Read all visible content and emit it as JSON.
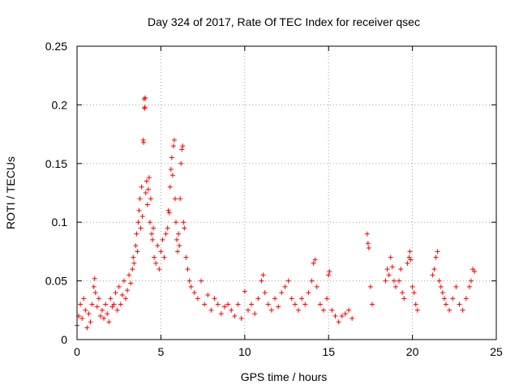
{
  "chart_data": {
    "type": "scatter",
    "title": "Day 324 of 2017, Rate Of TEC Index for receiver qsec",
    "xlabel": "GPS time / hours",
    "ylabel": "ROTI / TECUs",
    "xlim": [
      0,
      25
    ],
    "ylim": [
      0,
      0.25
    ],
    "xticks": [
      0,
      5,
      10,
      15,
      20,
      25
    ],
    "yticks": [
      0,
      0.05,
      0.1,
      0.15,
      0.2,
      0.25
    ],
    "xtick_labels": [
      "0",
      "5",
      "10",
      "15",
      "20",
      "25"
    ],
    "ytick_labels": [
      "0",
      "0.05",
      "0.1",
      "0.15",
      "0.2",
      "0.25"
    ],
    "grid": true,
    "marker": "plus",
    "color": "#ff0000",
    "series": [
      {
        "points": [
          [
            0.0,
            0.012
          ],
          [
            0.1,
            0.02
          ],
          [
            0.2,
            0.03
          ],
          [
            0.3,
            0.018
          ],
          [
            0.4,
            0.035
          ],
          [
            0.5,
            0.025
          ],
          [
            0.6,
            0.01
          ],
          [
            0.7,
            0.022
          ],
          [
            0.8,
            0.015
          ],
          [
            0.9,
            0.03
          ],
          [
            1.0,
            0.045
          ],
          [
            1.05,
            0.052
          ],
          [
            1.1,
            0.04
          ],
          [
            1.2,
            0.028
          ],
          [
            1.3,
            0.035
          ],
          [
            1.4,
            0.02
          ],
          [
            1.5,
            0.025
          ],
          [
            1.6,
            0.018
          ],
          [
            1.7,
            0.03
          ],
          [
            1.8,
            0.022
          ],
          [
            1.9,
            0.015
          ],
          [
            2.0,
            0.035
          ],
          [
            2.1,
            0.028
          ],
          [
            2.2,
            0.03
          ],
          [
            2.3,
            0.04
          ],
          [
            2.4,
            0.025
          ],
          [
            2.5,
            0.045
          ],
          [
            2.6,
            0.03
          ],
          [
            2.7,
            0.038
          ],
          [
            2.8,
            0.05
          ],
          [
            2.9,
            0.035
          ],
          [
            3.0,
            0.042
          ],
          [
            3.1,
            0.055
          ],
          [
            3.2,
            0.048
          ],
          [
            3.3,
            0.06
          ],
          [
            3.35,
            0.07
          ],
          [
            3.4,
            0.065
          ],
          [
            3.5,
            0.08
          ],
          [
            3.55,
            0.09
          ],
          [
            3.6,
            0.075
          ],
          [
            3.65,
            0.1
          ],
          [
            3.7,
            0.11
          ],
          [
            3.75,
            0.12
          ],
          [
            3.8,
            0.095
          ],
          [
            3.85,
            0.13
          ],
          [
            3.9,
            0.105
          ],
          [
            3.95,
            0.17
          ],
          [
            3.97,
            0.168
          ],
          [
            4.0,
            0.205
          ],
          [
            4.02,
            0.197
          ],
          [
            4.05,
            0.198
          ],
          [
            4.07,
            0.206
          ],
          [
            4.1,
            0.125
          ],
          [
            4.15,
            0.135
          ],
          [
            4.2,
            0.115
          ],
          [
            4.25,
            0.128
          ],
          [
            4.3,
            0.138
          ],
          [
            4.35,
            0.1
          ],
          [
            4.4,
            0.12
          ],
          [
            4.45,
            0.09
          ],
          [
            4.5,
            0.085
          ],
          [
            4.55,
            0.095
          ],
          [
            4.6,
            0.07
          ],
          [
            4.7,
            0.065
          ],
          [
            4.8,
            0.08
          ],
          [
            4.9,
            0.06
          ],
          [
            5.0,
            0.075
          ],
          [
            5.1,
            0.085
          ],
          [
            5.2,
            0.07
          ],
          [
            5.3,
            0.09
          ],
          [
            5.4,
            0.095
          ],
          [
            5.45,
            0.11
          ],
          [
            5.5,
            0.108
          ],
          [
            5.55,
            0.13
          ],
          [
            5.6,
            0.145
          ],
          [
            5.65,
            0.155
          ],
          [
            5.7,
            0.14
          ],
          [
            5.75,
            0.165
          ],
          [
            5.8,
            0.17
          ],
          [
            5.85,
            0.12
          ],
          [
            5.9,
            0.1
          ],
          [
            5.95,
            0.085
          ],
          [
            6.0,
            0.075
          ],
          [
            6.05,
            0.09
          ],
          [
            6.1,
            0.08
          ],
          [
            6.15,
            0.12
          ],
          [
            6.2,
            0.15
          ],
          [
            6.25,
            0.162
          ],
          [
            6.3,
            0.165
          ],
          [
            6.35,
            0.1
          ],
          [
            6.4,
            0.095
          ],
          [
            6.5,
            0.07
          ],
          [
            6.6,
            0.06
          ],
          [
            6.7,
            0.05
          ],
          [
            6.8,
            0.045
          ],
          [
            7.0,
            0.04
          ],
          [
            7.2,
            0.035
          ],
          [
            7.4,
            0.05
          ],
          [
            7.6,
            0.03
          ],
          [
            7.8,
            0.038
          ],
          [
            8.0,
            0.025
          ],
          [
            8.2,
            0.035
          ],
          [
            8.4,
            0.03
          ],
          [
            8.6,
            0.022
          ],
          [
            8.8,
            0.028
          ],
          [
            9.0,
            0.03
          ],
          [
            9.2,
            0.025
          ],
          [
            9.4,
            0.02
          ],
          [
            9.6,
            0.03
          ],
          [
            9.8,
            0.018
          ],
          [
            10.0,
            0.041
          ],
          [
            10.2,
            0.025
          ],
          [
            10.4,
            0.03
          ],
          [
            10.6,
            0.022
          ],
          [
            10.8,
            0.035
          ],
          [
            11.0,
            0.05
          ],
          [
            11.1,
            0.055
          ],
          [
            11.2,
            0.04
          ],
          [
            11.4,
            0.03
          ],
          [
            11.6,
            0.025
          ],
          [
            11.8,
            0.035
          ],
          [
            12.0,
            0.028
          ],
          [
            12.2,
            0.04
          ],
          [
            12.4,
            0.045
          ],
          [
            12.6,
            0.05
          ],
          [
            12.8,
            0.035
          ],
          [
            13.0,
            0.03
          ],
          [
            13.2,
            0.025
          ],
          [
            13.4,
            0.035
          ],
          [
            13.6,
            0.03
          ],
          [
            13.8,
            0.04
          ],
          [
            14.0,
            0.05
          ],
          [
            14.1,
            0.065
          ],
          [
            14.2,
            0.068
          ],
          [
            14.3,
            0.045
          ],
          [
            14.5,
            0.03
          ],
          [
            14.7,
            0.025
          ],
          [
            14.9,
            0.035
          ],
          [
            15.0,
            0.055
          ],
          [
            15.05,
            0.058
          ],
          [
            15.2,
            0.025
          ],
          [
            15.4,
            0.02
          ],
          [
            15.6,
            0.015
          ],
          [
            15.8,
            0.02
          ],
          [
            16.0,
            0.022
          ],
          [
            16.2,
            0.025
          ],
          [
            16.4,
            0.018
          ],
          [
            17.3,
            0.09
          ],
          [
            17.35,
            0.082
          ],
          [
            17.4,
            0.078
          ],
          [
            17.5,
            0.045
          ],
          [
            17.6,
            0.03
          ],
          [
            18.4,
            0.05
          ],
          [
            18.5,
            0.06
          ],
          [
            18.6,
            0.055
          ],
          [
            18.7,
            0.07
          ],
          [
            18.8,
            0.062
          ],
          [
            18.9,
            0.05
          ],
          [
            19.0,
            0.045
          ],
          [
            19.2,
            0.05
          ],
          [
            19.3,
            0.06
          ],
          [
            19.4,
            0.04
          ],
          [
            19.5,
            0.035
          ],
          [
            19.7,
            0.065
          ],
          [
            19.8,
            0.07
          ],
          [
            19.85,
            0.075
          ],
          [
            19.9,
            0.068
          ],
          [
            20.0,
            0.045
          ],
          [
            20.1,
            0.04
          ],
          [
            20.2,
            0.03
          ],
          [
            20.3,
            0.025
          ],
          [
            21.2,
            0.055
          ],
          [
            21.3,
            0.06
          ],
          [
            21.4,
            0.07
          ],
          [
            21.5,
            0.075
          ],
          [
            21.6,
            0.05
          ],
          [
            21.7,
            0.045
          ],
          [
            21.8,
            0.04
          ],
          [
            21.9,
            0.035
          ],
          [
            22.0,
            0.03
          ],
          [
            22.2,
            0.025
          ],
          [
            22.4,
            0.035
          ],
          [
            22.6,
            0.045
          ],
          [
            22.8,
            0.03
          ],
          [
            23.0,
            0.025
          ],
          [
            23.2,
            0.035
          ],
          [
            23.4,
            0.045
          ],
          [
            23.5,
            0.05
          ],
          [
            23.6,
            0.06
          ],
          [
            23.7,
            0.058
          ]
        ]
      }
    ]
  }
}
